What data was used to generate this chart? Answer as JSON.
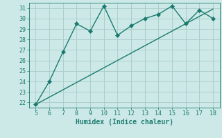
{
  "x_data": [
    5,
    6,
    7,
    8,
    9,
    10,
    11,
    12,
    13,
    14,
    15,
    16,
    17,
    18
  ],
  "y_line1": [
    21.8,
    24.0,
    26.8,
    29.5,
    28.8,
    31.2,
    28.4,
    29.3,
    30.0,
    30.4,
    31.2,
    29.5,
    30.8,
    30.0
  ],
  "y_line2": [
    21.8,
    22.5,
    23.2,
    23.9,
    24.6,
    25.3,
    26.0,
    26.7,
    27.4,
    28.1,
    28.8,
    29.5,
    30.2,
    30.9
  ],
  "line_color": "#1a7a6e",
  "bg_color": "#cce9e7",
  "grid_color": "#a8ccc9",
  "xlabel": "Humidex (Indice chaleur)",
  "xlim": [
    4.5,
    18.5
  ],
  "ylim": [
    21.5,
    31.5
  ],
  "xticks": [
    5,
    6,
    7,
    8,
    9,
    10,
    11,
    12,
    13,
    14,
    15,
    16,
    17,
    18
  ],
  "yticks": [
    22,
    23,
    24,
    25,
    26,
    27,
    28,
    29,
    30,
    31
  ],
  "markersize": 3.0,
  "linewidth": 1.0,
  "tick_fontsize": 6.0,
  "xlabel_fontsize": 7.0
}
